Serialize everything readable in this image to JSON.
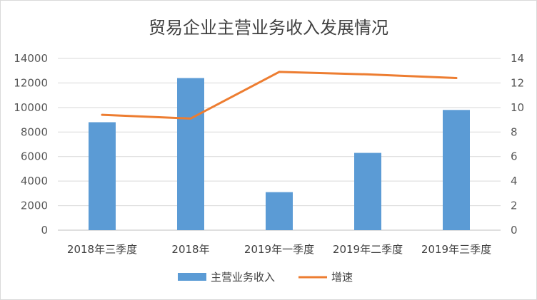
{
  "chart_data": {
    "type": "bar",
    "title": "贸易企业主营业务收入发展情况",
    "categories": [
      "2018年三季度",
      "2018年",
      "2019年一季度",
      "2019年二季度",
      "2019年三季度"
    ],
    "series": [
      {
        "name": "主营业务收入",
        "type": "bar",
        "axis": "left",
        "color": "#5b9bd5",
        "values": [
          8800,
          12400,
          3100,
          6300,
          9800
        ]
      },
      {
        "name": "增速",
        "type": "line",
        "axis": "right",
        "color": "#ed7d31",
        "values": [
          9.4,
          9.1,
          12.9,
          12.7,
          12.4
        ]
      }
    ],
    "y_left": {
      "min": 0,
      "max": 14000,
      "ticks": [
        "0",
        "2000",
        "4000",
        "6000",
        "8000",
        "10000",
        "12000",
        "14000"
      ]
    },
    "y_right": {
      "min": 0,
      "max": 14,
      "ticks": [
        "0",
        "2",
        "4",
        "6",
        "8",
        "10",
        "12",
        "14"
      ]
    },
    "grid": true,
    "legend_position": "bottom"
  }
}
